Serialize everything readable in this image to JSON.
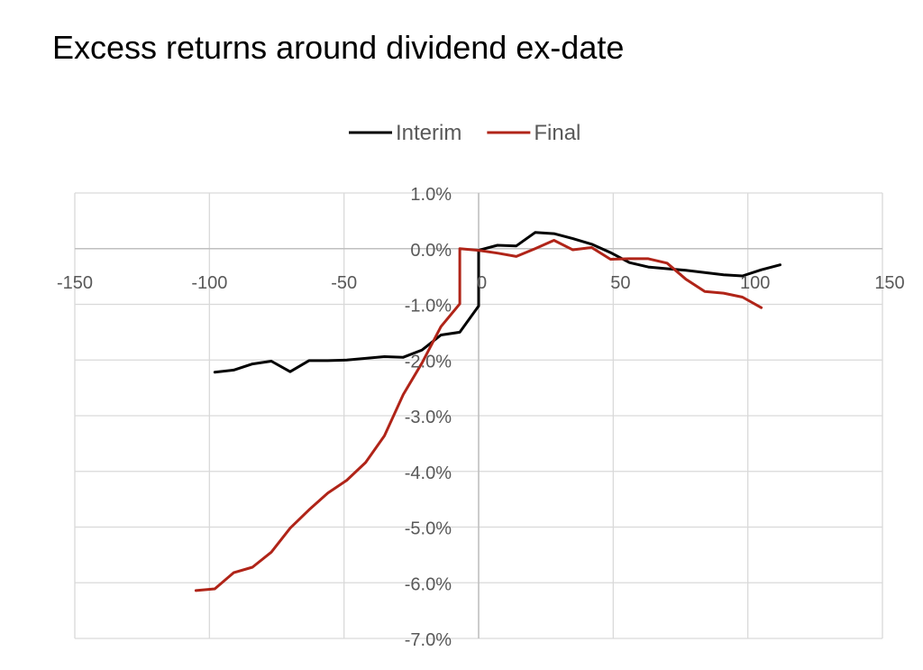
{
  "chart_data": {
    "type": "line",
    "title": "Excess returns around dividend ex-date",
    "xlabel": "",
    "ylabel": "",
    "xlim": [
      -150,
      150
    ],
    "ylim": [
      -7.0,
      1.0
    ],
    "x_ticks": [
      "-150",
      "-100",
      "-50",
      "0",
      "50",
      "100",
      "150"
    ],
    "y_ticks": [
      "1.0%",
      "0.0%",
      "-1.0%",
      "-2.0%",
      "-3.0%",
      "-4.0%",
      "-5.0%",
      "-6.0%",
      "-7.0%"
    ],
    "grid": true,
    "legend_position": "top",
    "series": [
      {
        "name": "Interim",
        "color": "#000000",
        "points": [
          [
            -98,
            -2.22
          ],
          [
            -91,
            -2.18
          ],
          [
            -84,
            -2.07
          ],
          [
            -77,
            -2.02
          ],
          [
            -70,
            -2.21
          ],
          [
            -63,
            -2.01
          ],
          [
            -56,
            -2.01
          ],
          [
            -49,
            -2.0
          ],
          [
            -42,
            -1.97
          ],
          [
            -35,
            -1.94
          ],
          [
            -28,
            -1.95
          ],
          [
            -21,
            -1.82
          ],
          [
            -14,
            -1.55
          ],
          [
            -7,
            -1.5
          ],
          [
            0,
            -1.03
          ],
          [
            0,
            -0.03
          ],
          [
            7,
            0.06
          ],
          [
            14,
            0.05
          ],
          [
            21,
            0.29
          ],
          [
            28,
            0.27
          ],
          [
            35,
            0.18
          ],
          [
            42,
            0.08
          ],
          [
            49,
            -0.07
          ],
          [
            56,
            -0.25
          ],
          [
            63,
            -0.33
          ],
          [
            70,
            -0.36
          ],
          [
            77,
            -0.39
          ],
          [
            84,
            -0.43
          ],
          [
            91,
            -0.47
          ],
          [
            98,
            -0.49
          ],
          [
            105,
            -0.38
          ],
          [
            112,
            -0.29
          ]
        ]
      },
      {
        "name": "Final",
        "color": "#b02418",
        "points": [
          [
            -105,
            -6.14
          ],
          [
            -98,
            -6.11
          ],
          [
            -91,
            -5.82
          ],
          [
            -84,
            -5.72
          ],
          [
            -77,
            -5.45
          ],
          [
            -70,
            -5.02
          ],
          [
            -63,
            -4.69
          ],
          [
            -56,
            -4.39
          ],
          [
            -49,
            -4.16
          ],
          [
            -42,
            -3.84
          ],
          [
            -35,
            -3.36
          ],
          [
            -28,
            -2.62
          ],
          [
            -21,
            -2.05
          ],
          [
            -14,
            -1.4
          ],
          [
            -7,
            -0.99
          ],
          [
            -7,
            0.0
          ],
          [
            0,
            -0.03
          ],
          [
            7,
            -0.08
          ],
          [
            14,
            -0.14
          ],
          [
            21,
            0.0
          ],
          [
            28,
            0.15
          ],
          [
            35,
            -0.02
          ],
          [
            42,
            0.02
          ],
          [
            49,
            -0.19
          ],
          [
            56,
            -0.18
          ],
          [
            63,
            -0.18
          ],
          [
            70,
            -0.26
          ],
          [
            77,
            -0.55
          ],
          [
            84,
            -0.77
          ],
          [
            91,
            -0.8
          ],
          [
            98,
            -0.87
          ],
          [
            105,
            -1.06
          ]
        ]
      }
    ]
  }
}
